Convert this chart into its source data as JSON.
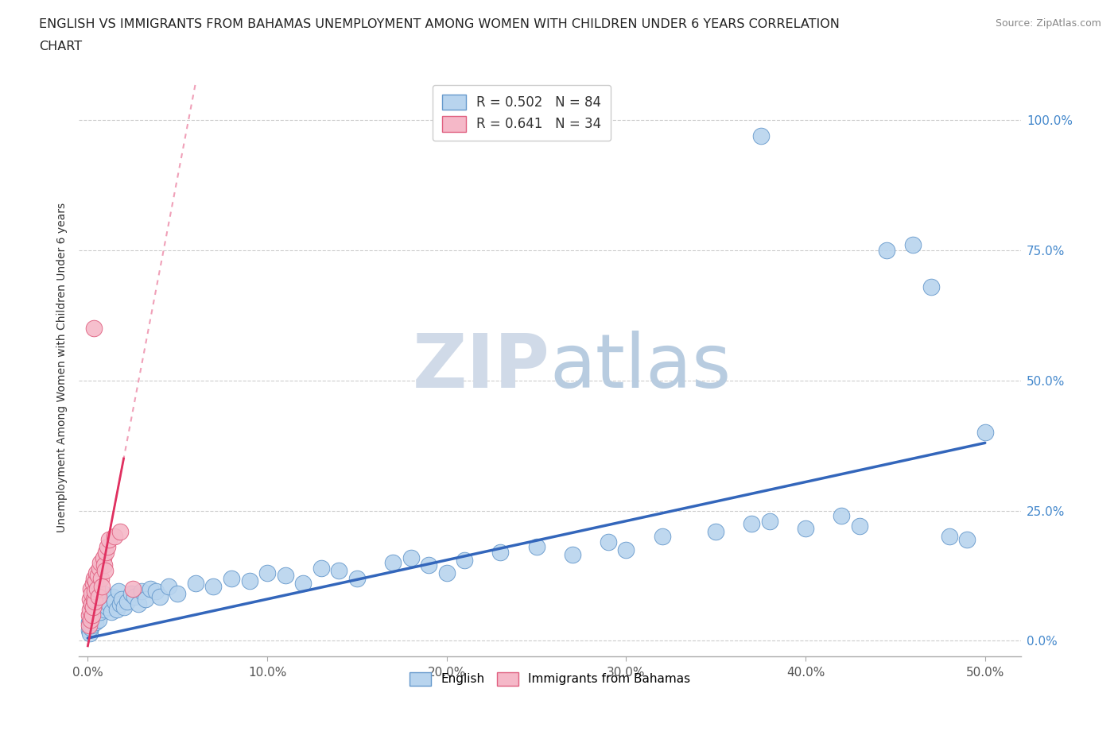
{
  "title_line1": "ENGLISH VS IMMIGRANTS FROM BAHAMAS UNEMPLOYMENT AMONG WOMEN WITH CHILDREN UNDER 6 YEARS CORRELATION",
  "title_line2": "CHART",
  "source": "Source: ZipAtlas.com",
  "xlabel_ticks": [
    "0.0%",
    "10.0%",
    "20.0%",
    "30.0%",
    "40.0%",
    "50.0%"
  ],
  "ylabel_ticks": [
    "0.0%",
    "25.0%",
    "50.0%",
    "75.0%",
    "100.0%"
  ],
  "xlabel_vals": [
    0,
    10,
    20,
    30,
    40,
    50
  ],
  "ylabel_vals": [
    0,
    25,
    50,
    75,
    100
  ],
  "xlim": [
    -0.5,
    52
  ],
  "ylim": [
    -3,
    108
  ],
  "ylabel": "Unemployment Among Women with Children Under 6 years",
  "english_R": 0.502,
  "english_N": 84,
  "bahamas_R": 0.641,
  "bahamas_N": 34,
  "english_color": "#b8d4ee",
  "bahamas_color": "#f5b8c8",
  "english_edge_color": "#6699cc",
  "bahamas_edge_color": "#e06080",
  "english_line_color": "#3366bb",
  "bahamas_line_color": "#e03060",
  "bahamas_dash_color": "#f0a0b8",
  "grid_color": "#cccccc",
  "ytick_color": "#4488cc",
  "watermark_color": "#e8eef5",
  "english_x": [
    0.05,
    0.08,
    0.1,
    0.12,
    0.15,
    0.18,
    0.2,
    0.22,
    0.25,
    0.28,
    0.3,
    0.32,
    0.35,
    0.38,
    0.4,
    0.42,
    0.45,
    0.48,
    0.5,
    0.55,
    0.6,
    0.65,
    0.7,
    0.75,
    0.8,
    0.85,
    0.9,
    0.95,
    1.0,
    1.1,
    1.2,
    1.3,
    1.4,
    1.5,
    1.6,
    1.7,
    1.8,
    1.9,
    2.0,
    2.2,
    2.4,
    2.6,
    2.8,
    3.0,
    3.2,
    3.5,
    3.8,
    4.0,
    4.5,
    5.0,
    6.0,
    7.0,
    8.0,
    9.0,
    10.0,
    11.0,
    12.0,
    13.0,
    14.0,
    15.0,
    17.0,
    18.0,
    19.0,
    20.0,
    21.0,
    23.0,
    25.0,
    27.0,
    29.0,
    30.0,
    32.0,
    35.0,
    37.0,
    38.0,
    40.0,
    42.0,
    43.0,
    44.5,
    46.0,
    47.0,
    48.0,
    49.0,
    50.0,
    37.5
  ],
  "english_y": [
    2.0,
    3.5,
    1.5,
    4.0,
    2.5,
    5.0,
    3.0,
    6.0,
    4.5,
    5.5,
    7.0,
    4.0,
    6.5,
    5.0,
    7.5,
    3.5,
    8.0,
    6.0,
    5.5,
    7.0,
    4.0,
    6.5,
    5.5,
    8.5,
    7.0,
    9.0,
    6.0,
    7.5,
    8.0,
    6.5,
    7.0,
    5.5,
    8.5,
    7.5,
    6.0,
    9.5,
    7.0,
    8.0,
    6.5,
    7.5,
    9.0,
    8.5,
    7.0,
    9.5,
    8.0,
    10.0,
    9.5,
    8.5,
    10.5,
    9.0,
    11.0,
    10.5,
    12.0,
    11.5,
    13.0,
    12.5,
    11.0,
    14.0,
    13.5,
    12.0,
    15.0,
    16.0,
    14.5,
    13.0,
    15.5,
    17.0,
    18.0,
    16.5,
    19.0,
    17.5,
    20.0,
    21.0,
    22.5,
    23.0,
    21.5,
    24.0,
    22.0,
    75.0,
    76.0,
    68.0,
    20.0,
    19.5,
    40.0,
    97.0
  ],
  "bahamas_x": [
    0.05,
    0.08,
    0.1,
    0.12,
    0.15,
    0.18,
    0.2,
    0.22,
    0.25,
    0.28,
    0.3,
    0.32,
    0.35,
    0.38,
    0.4,
    0.42,
    0.45,
    0.5,
    0.55,
    0.6,
    0.65,
    0.7,
    0.75,
    0.8,
    0.85,
    0.9,
    0.95,
    1.0,
    1.1,
    1.2,
    1.5,
    1.8,
    2.5,
    0.35
  ],
  "bahamas_y": [
    3.0,
    5.0,
    8.0,
    6.0,
    4.0,
    10.0,
    7.0,
    9.0,
    5.0,
    11.0,
    6.5,
    12.0,
    8.0,
    7.5,
    9.5,
    11.5,
    13.0,
    10.0,
    12.5,
    8.5,
    14.0,
    15.0,
    12.0,
    10.5,
    16.0,
    14.5,
    13.5,
    17.0,
    18.0,
    19.5,
    20.0,
    21.0,
    10.0,
    60.0
  ]
}
